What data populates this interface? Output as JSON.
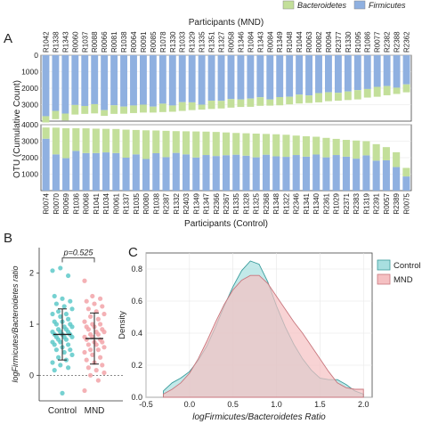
{
  "panels": {
    "A": "A",
    "B": "B",
    "C": "C"
  },
  "colors": {
    "firmicutes": "#8fb0e0",
    "bacteroidetes": "#c3df9a",
    "control": "#5ec9c9",
    "mnd": "#f2a3a8",
    "control_fill": "#a8dfe0",
    "mnd_fill": "#f5c0c2",
    "overlap_fill": "#b8c8c6",
    "grid": "#e6e6e6"
  },
  "chart_data": [
    {
      "type": "bar",
      "panel": "A",
      "legend": [
        "Bacteroidetes",
        "Firmicutes"
      ],
      "legend_placement": "top-right",
      "ylabel": "OTU (Cumulative Count)",
      "top": {
        "xlabel": "Participants (MND)",
        "orientation": "downward",
        "ylim": [
          0,
          4000
        ],
        "yticks": [
          "0",
          "1000",
          "2000",
          "3000"
        ],
        "categories": [
          "R1042",
          "R1338",
          "R1343",
          "R0060",
          "R1037",
          "R0088",
          "R0066",
          "R0081",
          "R1038",
          "R0064",
          "R0091",
          "R0085",
          "R1078",
          "R1330",
          "R1033",
          "R1329",
          "R1335",
          "R1351",
          "R1327",
          "R0058",
          "R1346",
          "R1084",
          "R1343",
          "R0084",
          "R1349",
          "R1048",
          "R1044",
          "R0063",
          "R0082",
          "R0094",
          "R2377",
          "R1330",
          "R1095",
          "R1086",
          "R0077",
          "R2382",
          "R2388",
          "R2362"
        ],
        "series": [
          {
            "name": "Firmicutes",
            "values": [
              3700,
              3380,
              3540,
              3020,
              3080,
              2970,
              3330,
              3040,
              3120,
              3050,
              3000,
              3120,
              2940,
              3050,
              2850,
              2860,
              3000,
              2760,
              2770,
              2660,
              2680,
              2630,
              2550,
              2680,
              2540,
              2520,
              2390,
              2440,
              2300,
              2250,
              2280,
              2200,
              2120,
              2050,
              1920,
              1870,
              1970,
              1770
            ]
          },
          {
            "name": "Bacteroidetes",
            "values": [
              380,
              500,
              420,
              580,
              480,
              560,
              350,
              520,
              430,
              460,
              480,
              360,
              510,
              380,
              530,
              470,
              300,
              500,
              460,
              520,
              460,
              500,
              520,
              380,
              500,
              460,
              540,
              460,
              560,
              540,
              480,
              520,
              560,
              520,
              600,
              560,
              380,
              480
            ]
          }
        ]
      },
      "bottom": {
        "xlabel": "Participants (Control)",
        "orientation": "upward",
        "ylim": [
          0,
          4000
        ],
        "yticks": [
          "1000",
          "2000",
          "3000",
          "4000"
        ],
        "categories": [
          "R0074",
          "R0070",
          "R0069",
          "R1036",
          "R0068",
          "R1041",
          "R1034",
          "R0061",
          "R1337",
          "R1035",
          "R0080",
          "R1038",
          "R2387",
          "R1332",
          "R2403",
          "R1349",
          "R1347",
          "R2366",
          "R2367",
          "R1335",
          "R1328",
          "R1325",
          "R2368",
          "R1348",
          "R1322",
          "R2346",
          "R1341",
          "R1340",
          "R2361",
          "R1029",
          "R2371",
          "R2383",
          "R1319",
          "R2391",
          "R0057",
          "R2389",
          "R0075"
        ],
        "series": [
          {
            "name": "Firmicutes",
            "values": [
              3150,
              2200,
              1970,
              2410,
              2280,
              2280,
              2320,
              2280,
              2000,
              2200,
              1920,
              2270,
              2030,
              2290,
              2200,
              2010,
              2160,
              2100,
              2150,
              2180,
              2120,
              2020,
              2180,
              2080,
              2050,
              2160,
              2060,
              2190,
              2020,
              2160,
              2060,
              1940,
              2140,
              1820,
              1840,
              1430,
              860
            ]
          },
          {
            "name": "Bacteroidetes",
            "values": [
              680,
              1620,
              1820,
              1380,
              1500,
              1480,
              1430,
              1460,
              1700,
              1480,
              1740,
              1380,
              1600,
              1320,
              1400,
              1580,
              1420,
              1460,
              1380,
              1320,
              1360,
              1440,
              1260,
              1340,
              1340,
              1180,
              1240,
              1080,
              1180,
              980,
              1020,
              1100,
              860,
              1000,
              800,
              900,
              520
            ]
          }
        ]
      }
    },
    {
      "type": "scatter",
      "panel": "B",
      "title": "",
      "xlabel": "",
      "ylabel": "logFirmicutes/Bacteroidetes ratio",
      "ylim": [
        -0.5,
        2.5
      ],
      "yticks": [
        "0",
        "1",
        "2"
      ],
      "categories": [
        "Control",
        "MND"
      ],
      "annotation": "p=0.525",
      "series": [
        {
          "name": "Control",
          "mean": 0.8,
          "sd": 0.5,
          "values": [
            2.05,
            2.1,
            1.95,
            1.55,
            1.5,
            1.45,
            1.4,
            1.35,
            1.3,
            1.25,
            1.2,
            1.2,
            1.15,
            1.1,
            1.05,
            1.05,
            1.0,
            1.0,
            0.95,
            0.95,
            0.9,
            0.9,
            0.85,
            0.85,
            0.85,
            0.8,
            0.8,
            0.8,
            0.75,
            0.75,
            0.75,
            0.7,
            0.7,
            0.65,
            0.65,
            0.6,
            0.6,
            0.55,
            0.5,
            0.5,
            0.45,
            0.4,
            0.35,
            0.3,
            0.25,
            0.2,
            0.15,
            0.1,
            -0.35
          ]
        },
        {
          "name": "MND",
          "mean": 0.72,
          "sd": 0.5,
          "values": [
            1.85,
            1.55,
            1.5,
            1.45,
            1.4,
            1.35,
            1.3,
            1.25,
            1.2,
            1.15,
            1.1,
            1.05,
            1.0,
            1.0,
            0.95,
            0.95,
            0.9,
            0.9,
            0.85,
            0.85,
            0.8,
            0.8,
            0.75,
            0.75,
            0.7,
            0.7,
            0.65,
            0.65,
            0.6,
            0.6,
            0.55,
            0.5,
            0.5,
            0.45,
            0.4,
            0.35,
            0.3,
            0.25,
            0.2,
            0.15,
            0.1,
            0.05,
            0.0,
            -0.1,
            -0.3
          ]
        }
      ]
    },
    {
      "type": "area",
      "panel": "C",
      "title": "",
      "xlabel": "logFirmicutes/Bacteroidetes Ratio",
      "ylabel": "Density",
      "xlim": [
        -0.5,
        2.1
      ],
      "ylim": [
        0,
        0.9
      ],
      "xticks": [
        "-0.5",
        "0.0",
        "0.5",
        "1.0",
        "1.5",
        "2.0"
      ],
      "yticks": [
        "0.0",
        "0.2",
        "0.4",
        "0.6",
        "0.8"
      ],
      "legend": [
        "Control",
        "MND"
      ],
      "legend_placement": "top-right",
      "series": [
        {
          "name": "Control",
          "x": [
            -0.3,
            -0.2,
            -0.1,
            0.0,
            0.1,
            0.2,
            0.3,
            0.4,
            0.5,
            0.6,
            0.7,
            0.8,
            0.9,
            1.0,
            1.1,
            1.2,
            1.3,
            1.4,
            1.5,
            1.6,
            1.7,
            1.8,
            1.9,
            2.0
          ],
          "y": [
            0.04,
            0.09,
            0.12,
            0.16,
            0.23,
            0.32,
            0.44,
            0.57,
            0.69,
            0.79,
            0.85,
            0.83,
            0.72,
            0.57,
            0.44,
            0.33,
            0.24,
            0.17,
            0.12,
            0.11,
            0.11,
            0.08,
            0.04,
            0.02
          ]
        },
        {
          "name": "MND",
          "x": [
            -0.3,
            -0.2,
            -0.1,
            0.0,
            0.1,
            0.2,
            0.3,
            0.4,
            0.5,
            0.6,
            0.7,
            0.8,
            0.9,
            1.0,
            1.1,
            1.2,
            1.3,
            1.4,
            1.5,
            1.6,
            1.7,
            1.8,
            1.9,
            2.0
          ],
          "y": [
            0.02,
            0.05,
            0.09,
            0.15,
            0.24,
            0.35,
            0.47,
            0.58,
            0.67,
            0.73,
            0.76,
            0.76,
            0.71,
            0.63,
            0.55,
            0.47,
            0.4,
            0.32,
            0.24,
            0.16,
            0.09,
            0.06,
            0.05,
            0.05
          ]
        }
      ]
    }
  ]
}
